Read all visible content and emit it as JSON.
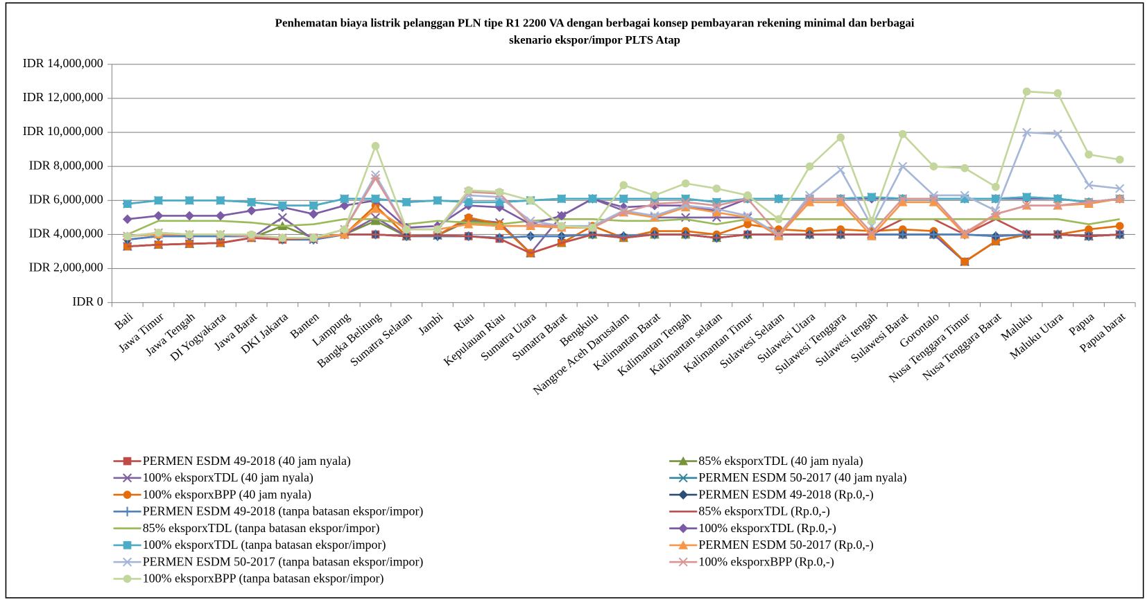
{
  "chart_data": {
    "type": "line",
    "title": [
      "Penhematan biaya listrik pelanggan PLN  tipe R1 2200 VA dengan berbagai konsep pembayaran  rekening minimal  dan berbagai",
      "skenario ekspor/impor  PLTS Atap"
    ],
    "categories": [
      "Bali",
      "Jawa Timur",
      "Jawa Tengah",
      "DI Yogyakarta",
      "Jawa Barat",
      "DKI Jakarta",
      "Banten",
      "Lampung",
      "Bangka Belitung",
      "Sumatra Selatan",
      "Jambi",
      "Riau",
      "Kepulauan Riau",
      "Sumatra Utara",
      "Sumatra Barat",
      "Bengkulu",
      "Nangroe Aceh Darusalam",
      "Kalimantan Barat",
      "Kalimantan Tengah",
      "Kalimantan selatan",
      "Kalimantan Timur",
      "Sulawesi Selatan",
      "Sulawesi Utara",
      "Sulawesi Tenggara",
      "Sulawesi tengah",
      "Sulawesi Barat",
      "Gorontalo",
      "Nusa Tenggara Timur",
      "Nusa Tenggara Barat",
      "Maluku",
      "Maluku Utara",
      "Papua",
      "Papua barat"
    ],
    "ylim": [
      0,
      14000000
    ],
    "yticks": [
      {
        "value": 0,
        "label": "IDR 0"
      },
      {
        "value": 2000000,
        "label": "IDR 2,000,000"
      },
      {
        "value": 4000000,
        "label": "IDR 4,000,000"
      },
      {
        "value": 6000000,
        "label": "IDR 6,000,000"
      },
      {
        "value": 8000000,
        "label": "IDR 8,000,000"
      },
      {
        "value": 10000000,
        "label": "IDR 10,000,000"
      },
      {
        "value": 12000000,
        "label": "IDR 12,000,000"
      },
      {
        "value": 14000000,
        "label": "IDR 14,000,000"
      }
    ],
    "grid": true,
    "legend": "bottom",
    "series": [
      {
        "name": "PERMEN ESDM 49-2018 (40 jam nyala)",
        "color": "#be4b48",
        "marker": "square",
        "values": [
          3300000,
          3400000,
          3450000,
          3500000,
          3800000,
          3700000,
          3800000,
          4000000,
          4000000,
          3900000,
          3950000,
          3900000,
          3750000,
          2900000,
          3500000,
          4000000,
          3800000,
          4000000,
          4000000,
          3800000,
          4000000,
          4000000,
          4000000,
          4000000,
          4000000,
          4000000,
          4000000,
          2400000,
          3600000,
          4000000,
          4000000,
          3900000,
          4000000
        ]
      },
      {
        "name": "85% eksporxTDL (40 jam nyala)",
        "color": "#77933c",
        "marker": "triangle",
        "values": [
          3300000,
          3400000,
          3450000,
          3500000,
          3800000,
          4500000,
          3800000,
          4000000,
          4800000,
          3900000,
          3950000,
          4800000,
          4600000,
          2900000,
          3500000,
          4000000,
          3800000,
          4000000,
          4000000,
          3800000,
          4000000,
          4000000,
          4000000,
          4000000,
          4000000,
          4000000,
          4000000,
          2400000,
          3600000,
          4000000,
          4000000,
          3900000,
          4000000
        ]
      },
      {
        "name": "100% eksporxTDL (40 jam nyala)",
        "color": "#7f63a1",
        "marker": "x",
        "values": [
          3300000,
          3400000,
          3450000,
          3500000,
          3800000,
          5000000,
          3700000,
          4000000,
          5000000,
          3900000,
          3950000,
          4900000,
          4700000,
          2900000,
          5100000,
          6100000,
          5400000,
          5000000,
          5000000,
          5000000,
          5000000,
          4000000,
          4000000,
          4000000,
          4000000,
          4000000,
          4000000,
          2400000,
          3600000,
          4000000,
          4000000,
          3900000,
          4000000
        ]
      },
      {
        "name": "PERMEN ESDM 50-2017 (40 jam nyala)",
        "color": "#31859c",
        "marker": "star",
        "values": [
          5800000,
          6000000,
          6000000,
          6000000,
          5900000,
          5700000,
          5700000,
          6100000,
          6100000,
          5900000,
          6000000,
          5900000,
          5900000,
          6000000,
          6100000,
          6100000,
          6100000,
          6100000,
          6100000,
          5900000,
          6100000,
          6100000,
          6100000,
          6100000,
          6200000,
          6100000,
          6100000,
          6100000,
          6100000,
          6200000,
          6100000,
          5900000,
          6100000
        ]
      },
      {
        "name": "100% eksporxBPP (40 jam nyala)",
        "color": "#e46c0a",
        "marker": "circle",
        "values": [
          3300000,
          3400000,
          3450000,
          3500000,
          3800000,
          3700000,
          3800000,
          4000000,
          5700000,
          3900000,
          3950000,
          5000000,
          4600000,
          2900000,
          3500000,
          4500000,
          3800000,
          4200000,
          4200000,
          4000000,
          4600000,
          4300000,
          4200000,
          4300000,
          4200000,
          4300000,
          4200000,
          2400000,
          3600000,
          4000000,
          4000000,
          4300000,
          4500000
        ]
      },
      {
        "name": "PERMEN ESDM 49-2018 (Rp.0,-)",
        "color": "#2c4d75",
        "marker": "diamond",
        "values": [
          3700000,
          3900000,
          3900000,
          3900000,
          3900000,
          3700000,
          3700000,
          4000000,
          4000000,
          3900000,
          3900000,
          3900000,
          3800000,
          3900000,
          3900000,
          4000000,
          3900000,
          4000000,
          4000000,
          3800000,
          4000000,
          4000000,
          4000000,
          4000000,
          4000000,
          4000000,
          4000000,
          4000000,
          3900000,
          4000000,
          4000000,
          3900000,
          4000000
        ]
      },
      {
        "name": "PERMEN ESDM 49-2018 (tanpa batasan ekspor/impor)",
        "color": "#4f81bd",
        "marker": "plus",
        "values": [
          3700000,
          3900000,
          3900000,
          3900000,
          3900000,
          3700000,
          3700000,
          4000000,
          4000000,
          3900000,
          3900000,
          3900000,
          3800000,
          3900000,
          3900000,
          4000000,
          3900000,
          4000000,
          4000000,
          3800000,
          4000000,
          4000000,
          4000000,
          4000000,
          4000000,
          4000000,
          4000000,
          4000000,
          3900000,
          4000000,
          4000000,
          3900000,
          4000000
        ]
      },
      {
        "name": "85% eksporxTDL (Rp.0,-)",
        "color": "#c0504d",
        "marker": "none",
        "values": [
          3300000,
          3400000,
          3450000,
          3500000,
          3800000,
          3700000,
          3800000,
          4000000,
          4000000,
          3900000,
          3950000,
          3900000,
          3750000,
          2900000,
          3500000,
          4000000,
          3800000,
          4000000,
          4000000,
          3800000,
          4000000,
          4000000,
          4000000,
          4000000,
          4000000,
          4900000,
          4900000,
          4000000,
          4900000,
          4000000,
          4000000,
          3900000,
          4000000
        ]
      },
      {
        "name": "85% eksporxTDL (tanpa batasan ekspor/impor)",
        "color": "#9bbb59",
        "marker": "none",
        "values": [
          4000000,
          4800000,
          4800000,
          4800000,
          4700000,
          4500000,
          4600000,
          4900000,
          4900000,
          4600000,
          4800000,
          4700000,
          4600000,
          4800000,
          4900000,
          4900000,
          4800000,
          4800000,
          4900000,
          4600000,
          4900000,
          4900000,
          4900000,
          4900000,
          4900000,
          4900000,
          4900000,
          4900000,
          4900000,
          4900000,
          4900000,
          4600000,
          4900000
        ]
      },
      {
        "name": "100% eksporxTDL (Rp.0,-)",
        "color": "#7b5aa6",
        "marker": "diamond",
        "values": [
          4900000,
          5100000,
          5100000,
          5100000,
          5400000,
          5600000,
          5200000,
          5700000,
          6000000,
          4400000,
          4500000,
          5700000,
          5600000,
          4600000,
          5100000,
          6100000,
          5600000,
          5700000,
          5700000,
          5400000,
          6100000,
          6100000,
          6100000,
          6100000,
          6100000,
          6100000,
          6100000,
          6100000,
          6100000,
          6100000,
          6100000,
          5900000,
          6100000
        ]
      },
      {
        "name": "100% eksporxTDL (tanpa batasan ekspor/impor)",
        "color": "#4bacc6",
        "marker": "square",
        "values": [
          5800000,
          6000000,
          6000000,
          6000000,
          5900000,
          5700000,
          5700000,
          6100000,
          6100000,
          5900000,
          6000000,
          5900000,
          5900000,
          6000000,
          6100000,
          6100000,
          6100000,
          6100000,
          6100000,
          5900000,
          6100000,
          6100000,
          6100000,
          6100000,
          6200000,
          6100000,
          6100000,
          6100000,
          6100000,
          6200000,
          6100000,
          5900000,
          6100000
        ]
      },
      {
        "name": "PERMEN ESDM 50-2017 (Rp.0,-)",
        "color": "#f79646",
        "marker": "triangle",
        "values": [
          3900000,
          4000000,
          4000000,
          4000000,
          3900000,
          3800000,
          3800000,
          4000000,
          5500000,
          4300000,
          4300000,
          4600000,
          4500000,
          4500000,
          4400000,
          4400000,
          5300000,
          5000000,
          5600000,
          5300000,
          5000000,
          3900000,
          5900000,
          5900000,
          3900000,
          5900000,
          5900000,
          4000000,
          5200000,
          5700000,
          5700000,
          5800000,
          6100000
        ]
      },
      {
        "name": "PERMEN ESDM 50-2017 (tanpa batasan ekspor/impor)",
        "color": "#a5b6d8",
        "marker": "x",
        "values": [
          3900000,
          4100000,
          4000000,
          4000000,
          3900000,
          3800000,
          3800000,
          4300000,
          7500000,
          4300000,
          4300000,
          6300000,
          6200000,
          4800000,
          4500000,
          4500000,
          5400000,
          5100000,
          5700000,
          5500000,
          5100000,
          4000000,
          6300000,
          7800000,
          4500000,
          8000000,
          6300000,
          6300000,
          5400000,
          10000000,
          9900000,
          6900000,
          6700000
        ]
      },
      {
        "name": "100% eksporxBPP (Rp.0,-)",
        "color": "#d99694",
        "marker": "star",
        "values": [
          3900000,
          4100000,
          4000000,
          4000000,
          3900000,
          3800000,
          3800000,
          4300000,
          7300000,
          4300000,
          4300000,
          6500000,
          6400000,
          4600000,
          4500000,
          4400000,
          5300000,
          5800000,
          5900000,
          5700000,
          6100000,
          4000000,
          6100000,
          6100000,
          4100000,
          6100000,
          6100000,
          4100000,
          5200000,
          5700000,
          5700000,
          5900000,
          6100000
        ]
      },
      {
        "name": "100% eksporxBPP (tanpa batasan ekspor/impor)",
        "color": "#c3d69b",
        "marker": "circle",
        "values": [
          3900000,
          4100000,
          4000000,
          4000000,
          4000000,
          3800000,
          3800000,
          4300000,
          9200000,
          4300000,
          4300000,
          6600000,
          6500000,
          6000000,
          4500000,
          4400000,
          6900000,
          6300000,
          7000000,
          6700000,
          6300000,
          4900000,
          8000000,
          9700000,
          4800000,
          9900000,
          8000000,
          7900000,
          6800000,
          12400000,
          12300000,
          8700000,
          8400000
        ]
      }
    ]
  }
}
